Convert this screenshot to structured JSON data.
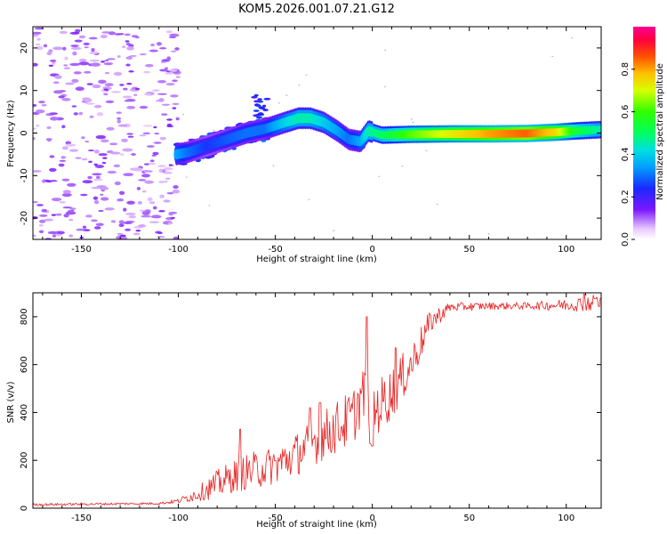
{
  "title": "KOM5.2026.001.07.21.G12",
  "chart_data": [
    {
      "type": "heatmap",
      "xlabel": "Height of straight line (km)",
      "ylabel": "Frequency (Hz)",
      "xlim": [
        -175,
        118
      ],
      "ylim": [
        -25,
        25
      ],
      "xticks": [
        -150,
        -100,
        -50,
        0,
        50,
        100
      ],
      "yticks": [
        -20,
        -10,
        0,
        10,
        20
      ],
      "colorbar": {
        "label": "Normalized spectral amplitude",
        "range": [
          0,
          1
        ],
        "ticks": [
          0.0,
          0.2,
          0.4,
          0.6,
          0.8
        ]
      },
      "ridge": {
        "x": [
          -101,
          -95,
          -85,
          -75,
          -65,
          -55,
          -45,
          -38,
          -32,
          -25,
          -18,
          -12,
          -6,
          -2,
          5,
          20,
          40,
          60,
          80,
          95,
          105,
          118
        ],
        "frequency": [
          -5,
          -4.5,
          -3,
          -1.5,
          0,
          1,
          2.5,
          3.5,
          3.5,
          2.5,
          0.5,
          -1.5,
          -2,
          0.5,
          -0.5,
          -0.3,
          -0.2,
          -0.2,
          -0.1,
          0.2,
          0.5,
          0.8
        ],
        "amplitude": [
          0.35,
          0.3,
          0.25,
          0.28,
          0.3,
          0.3,
          0.4,
          0.45,
          0.45,
          0.4,
          0.35,
          0.3,
          0.35,
          0.45,
          0.5,
          0.62,
          0.72,
          0.8,
          0.85,
          0.75,
          0.55,
          0.45
        ]
      },
      "noise_region_x": [
        -175,
        -100
      ]
    },
    {
      "type": "line",
      "xlabel": "Height of straight line (km)",
      "ylabel": "SNR (v/v)",
      "xlim": [
        -175,
        118
      ],
      "ylim": [
        0,
        900
      ],
      "xticks": [
        -150,
        -100,
        -50,
        0,
        50,
        100
      ],
      "yticks": [
        0,
        200,
        400,
        600,
        800
      ],
      "color": "#e82020",
      "envelope": {
        "x": [
          -175,
          -110,
          -100,
          -90,
          -80,
          -70,
          -60,
          -50,
          -40,
          -30,
          -20,
          -10,
          -5,
          0,
          10,
          20,
          30,
          40,
          60,
          80,
          100,
          118
        ],
        "snr": [
          15,
          20,
          30,
          60,
          100,
          140,
          160,
          180,
          220,
          280,
          330,
          380,
          480,
          400,
          480,
          600,
          780,
          840,
          845,
          845,
          850,
          860
        ],
        "scatter": [
          5,
          5,
          10,
          30,
          60,
          70,
          80,
          80,
          90,
          100,
          110,
          120,
          120,
          120,
          110,
          90,
          50,
          20,
          15,
          15,
          25,
          40
        ]
      },
      "peaks": [
        {
          "x": -68,
          "snr": 330
        },
        {
          "x": -32,
          "snr": 420
        },
        {
          "x": -27,
          "snr": 440
        },
        {
          "x": -3,
          "snr": 800
        },
        {
          "x": 12,
          "snr": 670
        },
        {
          "x": 109,
          "snr": 895
        },
        {
          "x": 115,
          "snr": 875
        }
      ],
      "dips": [
        {
          "x": -1,
          "snr": 270
        },
        {
          "x": 0,
          "snr": 260
        }
      ]
    }
  ]
}
